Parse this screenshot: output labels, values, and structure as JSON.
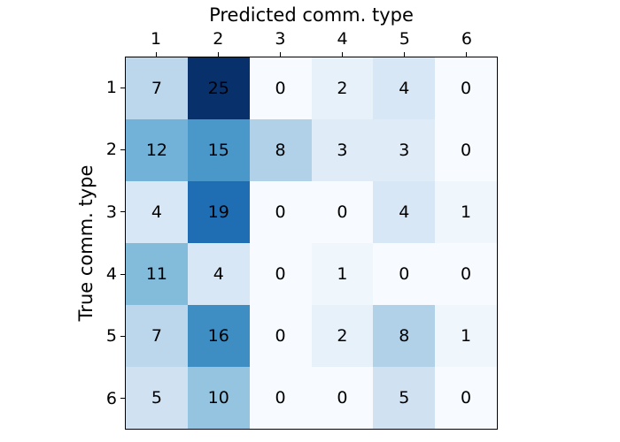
{
  "chart_data": {
    "type": "heatmap",
    "title": "",
    "xlabel": "Predicted comm. type",
    "ylabel": "True comm. type",
    "x_tick_labels": [
      "1",
      "2",
      "3",
      "4",
      "5",
      "6"
    ],
    "y_tick_labels": [
      "1",
      "2",
      "3",
      "4",
      "5",
      "6"
    ],
    "matrix": [
      [
        7,
        25,
        0,
        2,
        4,
        0
      ],
      [
        12,
        15,
        8,
        3,
        3,
        0
      ],
      [
        4,
        19,
        0,
        0,
        4,
        1
      ],
      [
        11,
        4,
        0,
        1,
        0,
        0
      ],
      [
        7,
        16,
        0,
        2,
        8,
        1
      ],
      [
        5,
        10,
        0,
        0,
        5,
        0
      ]
    ],
    "vmin": 0,
    "vmax": 25,
    "colormap": {
      "name": "Blues",
      "stops": [
        "#f7fbff",
        "#deebf7",
        "#c6dbef",
        "#9ecae1",
        "#6baed6",
        "#4292c6",
        "#2171b5",
        "#08519c",
        "#08306b"
      ]
    },
    "cell_text_color": "#000000",
    "axes_border_color": "#000000",
    "background_color": "#ffffff",
    "legend": "none",
    "grid": "off",
    "x_axis_position": "top",
    "y_axis_position": "left"
  }
}
